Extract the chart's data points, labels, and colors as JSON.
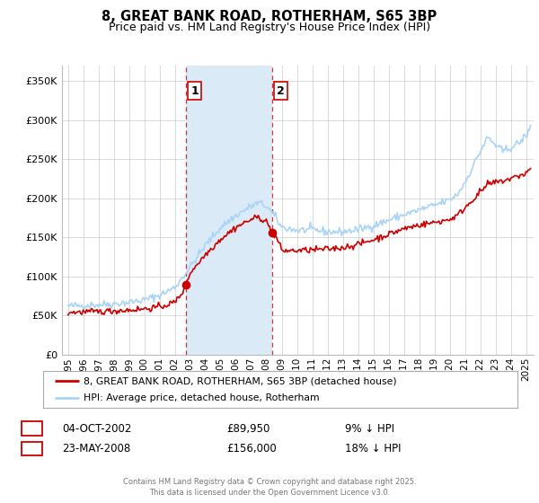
{
  "title": "8, GREAT BANK ROAD, ROTHERHAM, S65 3BP",
  "subtitle": "Price paid vs. HM Land Registry's House Price Index (HPI)",
  "legend_line1": "8, GREAT BANK ROAD, ROTHERHAM, S65 3BP (detached house)",
  "legend_line2": "HPI: Average price, detached house, Rotherham",
  "footnote": "Contains HM Land Registry data © Crown copyright and database right 2025.\nThis data is licensed under the Open Government Licence v3.0.",
  "transaction1_label": "1",
  "transaction1_date": "04-OCT-2002",
  "transaction1_price": "£89,950",
  "transaction1_hpi": "9% ↓ HPI",
  "transaction2_label": "2",
  "transaction2_date": "23-MAY-2008",
  "transaction2_price": "£156,000",
  "transaction2_hpi": "18% ↓ HPI",
  "sale1_year": 2002.75,
  "sale1_price": 89950,
  "sale2_year": 2008.38,
  "sale2_price": 156000,
  "vline1_x": 2002.75,
  "vline2_x": 2008.38,
  "shade_x1": 2002.75,
  "shade_x2": 2008.38,
  "hpi_color": "#aad4f5",
  "price_color": "#cc0000",
  "shade_color": "#daeaf7",
  "vline_color": "#cc0000",
  "background_color": "#ffffff",
  "grid_color": "#cccccc",
  "ylim": [
    0,
    370000
  ],
  "xlim_left": 1994.6,
  "xlim_right": 2025.5,
  "yticks": [
    0,
    50000,
    100000,
    150000,
    200000,
    250000,
    300000,
    350000
  ],
  "ytick_labels": [
    "£0",
    "£50K",
    "£100K",
    "£150K",
    "£200K",
    "£250K",
    "£300K",
    "£350K"
  ],
  "xticks": [
    1995,
    1996,
    1997,
    1998,
    1999,
    2000,
    2001,
    2002,
    2003,
    2004,
    2005,
    2006,
    2007,
    2008,
    2009,
    2010,
    2011,
    2012,
    2013,
    2014,
    2015,
    2016,
    2017,
    2018,
    2019,
    2020,
    2021,
    2022,
    2023,
    2024,
    2025
  ]
}
